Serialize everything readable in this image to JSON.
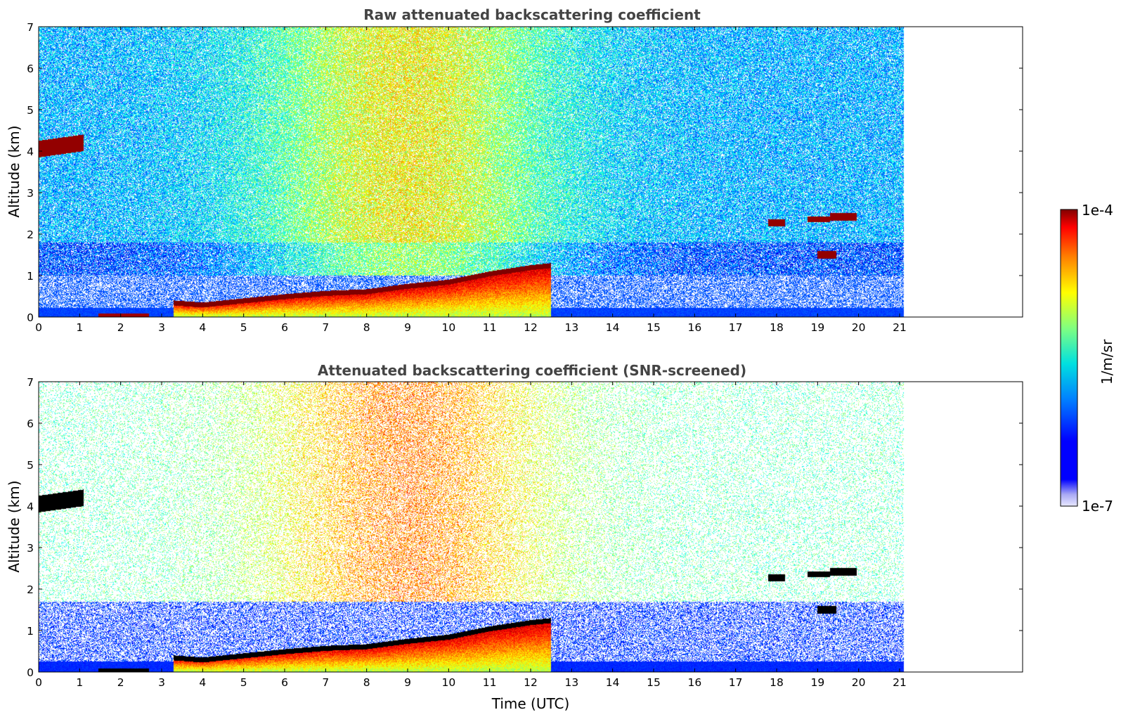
{
  "chart_data": [
    {
      "type": "heatmap",
      "title": "Raw attenuated backscattering coefficient",
      "xlabel": "",
      "ylabel": "Altitude (km)",
      "xlim": [
        0,
        24
      ],
      "ylim": [
        0,
        7
      ],
      "xticks": [
        0,
        1,
        2,
        3,
        4,
        5,
        6,
        7,
        8,
        9,
        10,
        11,
        12,
        13,
        14,
        15,
        16,
        17,
        18,
        19,
        20,
        21
      ],
      "yticks": [
        0,
        1,
        2,
        3,
        4,
        5,
        6,
        7
      ],
      "data_end_time": 21.1,
      "screened": false
    },
    {
      "type": "heatmap",
      "title": "Attenuated backscattering coefficient (SNR-screened)",
      "xlabel": "Time (UTC)",
      "ylabel": "Altitude (km)",
      "xlim": [
        0,
        24
      ],
      "ylim": [
        0,
        7
      ],
      "xticks": [
        0,
        1,
        2,
        3,
        4,
        5,
        6,
        7,
        8,
        9,
        10,
        11,
        12,
        13,
        14,
        15,
        16,
        17,
        18,
        19,
        20,
        21
      ],
      "yticks": [
        0,
        1,
        2,
        3,
        4,
        5,
        6,
        7
      ],
      "data_end_time": 21.1,
      "screened": true
    }
  ],
  "colorbar": {
    "label": "1/m/sr",
    "max_label": "1e-4",
    "min_label": "1e-7",
    "scale": "log",
    "colormap": "jet",
    "min": 1e-07,
    "max": 0.0001
  },
  "features": {
    "cloud_layers": [
      {
        "t0": 0.0,
        "t1": 1.1,
        "base": 3.85,
        "top": 4.25,
        "tilt": 0.15
      },
      {
        "t0": 17.8,
        "t1": 18.2,
        "base": 2.18,
        "top": 2.35,
        "tilt": 0.0
      },
      {
        "t0": 18.75,
        "t1": 19.3,
        "base": 2.28,
        "top": 2.42,
        "tilt": 0.0
      },
      {
        "t0": 19.3,
        "t1": 19.95,
        "base": 2.33,
        "top": 2.5,
        "tilt": 0.0
      },
      {
        "t0": 19.0,
        "t1": 19.45,
        "base": 1.4,
        "top": 1.6,
        "tilt": 0.0
      }
    ],
    "boundary_layer": [
      [
        3.3,
        0.35
      ],
      [
        4.0,
        0.3
      ],
      [
        5.0,
        0.4
      ],
      [
        6.0,
        0.5
      ],
      [
        7.0,
        0.58
      ],
      [
        8.0,
        0.62
      ],
      [
        9.0,
        0.75
      ],
      [
        10.0,
        0.85
      ],
      [
        11.0,
        1.05
      ],
      [
        12.0,
        1.2
      ],
      [
        12.5,
        1.25
      ]
    ]
  }
}
